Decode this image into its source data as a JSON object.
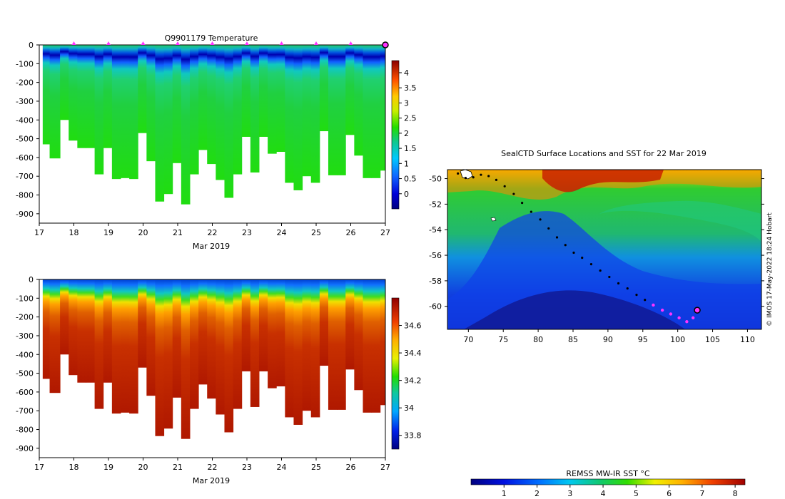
{
  "chart_data": [
    {
      "type": "heatmap",
      "title": "Q9901179  Temperature",
      "xlabel": "Mar 2019",
      "x_ticks": [
        "17",
        "18",
        "19",
        "20",
        "21",
        "22",
        "23",
        "24",
        "25",
        "26",
        "27"
      ],
      "xlim": [
        17,
        27
      ],
      "y_ticks": [
        "0",
        "-100",
        "-200",
        "-300",
        "-400",
        "-500",
        "-600",
        "-700",
        "-800",
        "-900"
      ],
      "ylim": [
        -950,
        0
      ],
      "colorbar": {
        "min": -0.5,
        "max": 4.4,
        "ticks": [
          "0",
          "0.5",
          "1",
          "1.5",
          "2",
          "2.5",
          "3",
          "3.5",
          "4"
        ]
      },
      "profile_days": [
        17.1,
        17.3,
        17.6,
        17.85,
        18.1,
        18.35,
        18.6,
        18.85,
        19.1,
        19.35,
        19.6,
        19.85,
        20.1,
        20.35,
        20.6,
        20.85,
        21.1,
        21.35,
        21.6,
        21.85,
        22.1,
        22.35,
        22.6,
        22.85,
        23.1,
        23.35,
        23.6,
        23.85,
        24.1,
        24.35,
        24.6,
        24.85,
        25.1,
        25.35,
        25.6,
        25.85,
        26.1,
        26.35,
        26.6,
        26.85
      ],
      "profile_max_depth": [
        530,
        605,
        400,
        510,
        550,
        550,
        690,
        550,
        715,
        710,
        715,
        470,
        620,
        835,
        795,
        630,
        850,
        690,
        560,
        635,
        720,
        815,
        690,
        490,
        680,
        490,
        580,
        570,
        735,
        775,
        700,
        735,
        460,
        695,
        695,
        480,
        590,
        710,
        710,
        670
      ],
      "surface_markers_days": [
        18,
        19,
        20,
        21,
        22,
        23,
        24,
        25,
        26
      ],
      "surface_marker_color": "#ff33ff",
      "last_position_day": 27
    },
    {
      "type": "heatmap",
      "title": "",
      "xlabel": "Mar 2019",
      "x_ticks": [
        "17",
        "18",
        "19",
        "20",
        "21",
        "22",
        "23",
        "24",
        "25",
        "26",
        "27"
      ],
      "xlim": [
        17,
        27
      ],
      "y_ticks": [
        "0",
        "-100",
        "-200",
        "-300",
        "-400",
        "-500",
        "-600",
        "-700",
        "-800",
        "-900"
      ],
      "ylim": [
        -950,
        0
      ],
      "colorbar": {
        "min": 33.7,
        "max": 34.8,
        "ticks": [
          "33.8",
          "34",
          "34.2",
          "34.4",
          "34.6"
        ]
      }
    },
    {
      "type": "heatmap",
      "title": "SealCTD Surface Locations and SST for 22 Mar 2019",
      "x_ticks": [
        "70",
        "75",
        "80",
        "85",
        "90",
        "95",
        "100",
        "105",
        "110"
      ],
      "xlim": [
        67,
        112
      ],
      "y_ticks": [
        "-50",
        "-52",
        "-54",
        "-56",
        "-58",
        "-60"
      ],
      "ylim": [
        -61.8,
        -49.3
      ],
      "colorbar": {
        "label": "REMSS MW-IR SST °C",
        "min": 0,
        "max": 8.3,
        "ticks": [
          "1",
          "2",
          "3",
          "4",
          "5",
          "6",
          "7",
          "8"
        ]
      },
      "track_lon": [
        68.5,
        69.6,
        70.7,
        71.8,
        72.9,
        74.0,
        75.2,
        76.5,
        77.7,
        79.0,
        80.3,
        81.5,
        82.7,
        83.9,
        85.1,
        86.3,
        87.6,
        88.9,
        90.2,
        91.5,
        92.8,
        94.1,
        95.3,
        96.5,
        97.8,
        99.0,
        100.2,
        101.3,
        102.2,
        102.8
      ],
      "track_lat": [
        -49.6,
        -49.95,
        -49.9,
        -49.7,
        -49.8,
        -50.1,
        -50.6,
        -51.2,
        -51.9,
        -52.6,
        -53.2,
        -53.9,
        -54.6,
        -55.2,
        -55.8,
        -56.2,
        -56.7,
        -57.2,
        -57.7,
        -58.2,
        -58.6,
        -59.1,
        -59.5,
        -59.9,
        -60.3,
        -60.6,
        -60.9,
        -61.2,
        -60.9,
        -60.3
      ],
      "track_color": "#000000",
      "recent_track_color": "#ff33ff",
      "recent_from_index": 23,
      "copyright": "© IMOS 17-May-2022 18:24 Hobart"
    }
  ]
}
